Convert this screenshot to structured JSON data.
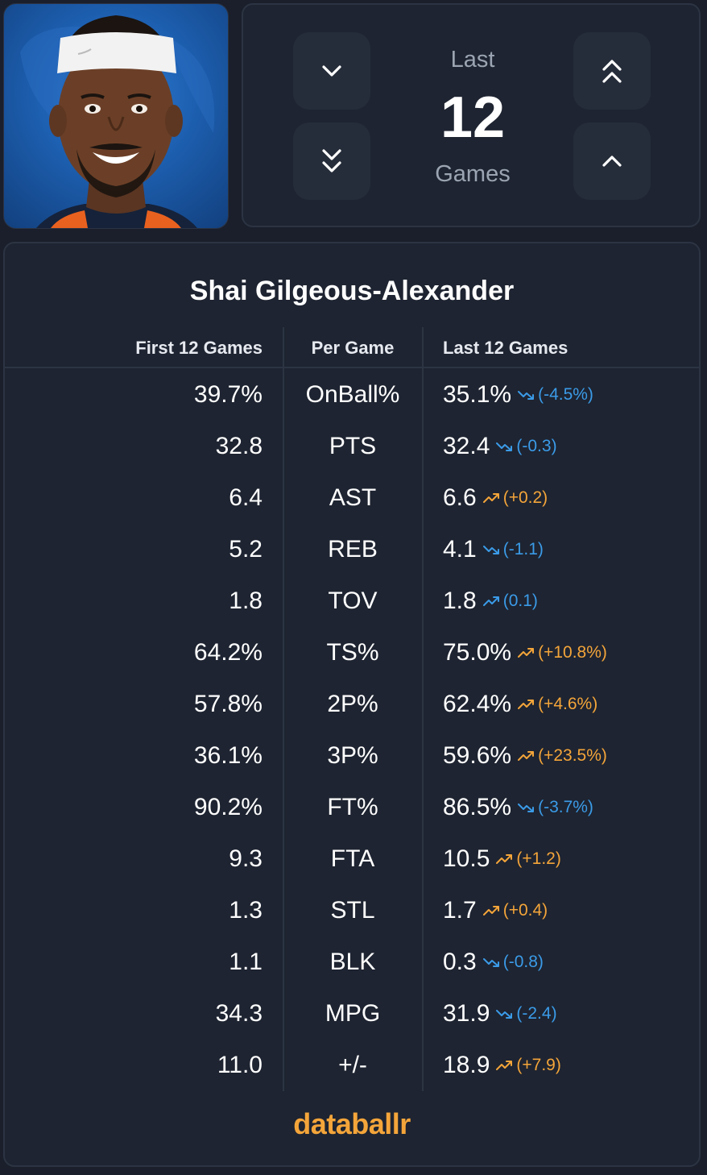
{
  "selector": {
    "label_top": "Last",
    "number": "12",
    "label_bottom": "Games"
  },
  "player": {
    "name": "Shai Gilgeous-Alexander"
  },
  "table": {
    "headers": {
      "first": "First 12 Games",
      "per_game": "Per Game",
      "last": "Last 12 Games"
    },
    "rows": [
      {
        "stat": "OnBall%",
        "first": "39.7%",
        "last": "35.1%",
        "delta": "(-4.5%)",
        "trend": "down"
      },
      {
        "stat": "PTS",
        "first": "32.8",
        "last": "32.4",
        "delta": "(-0.3)",
        "trend": "down"
      },
      {
        "stat": "AST",
        "first": "6.4",
        "last": "6.6",
        "delta": "(+0.2)",
        "trend": "up"
      },
      {
        "stat": "REB",
        "first": "5.2",
        "last": "4.1",
        "delta": "(-1.1)",
        "trend": "down"
      },
      {
        "stat": "TOV",
        "first": "1.8",
        "last": "1.8",
        "delta": "(0.1)",
        "trend": "up-blue"
      },
      {
        "stat": "TS%",
        "first": "64.2%",
        "last": "75.0%",
        "delta": "(+10.8%)",
        "trend": "up"
      },
      {
        "stat": "2P%",
        "first": "57.8%",
        "last": "62.4%",
        "delta": "(+4.6%)",
        "trend": "up"
      },
      {
        "stat": "3P%",
        "first": "36.1%",
        "last": "59.6%",
        "delta": "(+23.5%)",
        "trend": "up"
      },
      {
        "stat": "FT%",
        "first": "90.2%",
        "last": "86.5%",
        "delta": "(-3.7%)",
        "trend": "down"
      },
      {
        "stat": "FTA",
        "first": "9.3",
        "last": "10.5",
        "delta": "(+1.2)",
        "trend": "up"
      },
      {
        "stat": "STL",
        "first": "1.3",
        "last": "1.7",
        "delta": "(+0.4)",
        "trend": "up"
      },
      {
        "stat": "BLK",
        "first": "1.1",
        "last": "0.3",
        "delta": "(-0.8)",
        "trend": "down"
      },
      {
        "stat": "MPG",
        "first": "34.3",
        "last": "31.9",
        "delta": "(-2.4)",
        "trend": "down"
      },
      {
        "stat": "+/-",
        "first": "11.0",
        "last": "18.9",
        "delta": "(+7.9)",
        "trend": "up"
      }
    ]
  },
  "colors": {
    "up": "#f4a53a",
    "down": "#3b9be8",
    "up-blue": "#3b9be8"
  },
  "brand": "databallr"
}
